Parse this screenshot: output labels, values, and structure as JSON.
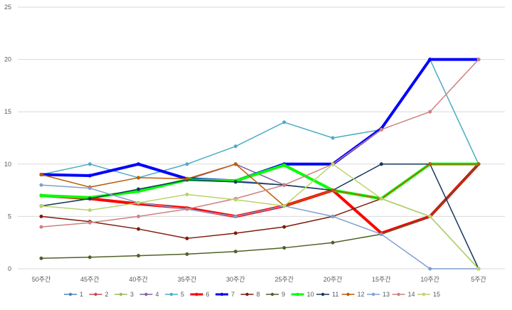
{
  "chart_data": {
    "type": "line",
    "title": "",
    "xlabel": "",
    "ylabel": "",
    "ylim": [
      0,
      25
    ],
    "yticks": [
      0,
      5,
      10,
      15,
      20,
      25
    ],
    "grid": true,
    "legend_placement": "bottom",
    "categories": [
      "50주간",
      "45주간",
      "40주간",
      "35주간",
      "30주간",
      "25주간",
      "20주간",
      "15주간",
      "10주간",
      "5주간"
    ],
    "series": [
      {
        "name": "1",
        "color": "#4f81bd",
        "width": 1.5,
        "marker": "circle",
        "values": [
          6.0,
          6.7,
          7.6,
          8.5,
          8.4,
          8.0,
          7.5,
          6.7,
          5.0,
          0
        ]
      },
      {
        "name": "2",
        "color": "#c0504d",
        "width": 1.5,
        "marker": "circle",
        "values": [
          7.0,
          6.7,
          6.3,
          5.8,
          5.0,
          6.0,
          7.5,
          3.4,
          5.0,
          10.0
        ]
      },
      {
        "name": "3",
        "color": "#9bbb59",
        "width": 1.5,
        "marker": "circle",
        "values": [
          7.0,
          6.7,
          7.5,
          8.5,
          8.3,
          10.0,
          7.5,
          6.7,
          5.0,
          0
        ]
      },
      {
        "name": "4",
        "color": "#8064a2",
        "width": 1.5,
        "marker": "circle",
        "values": [
          9.0,
          8.9,
          10.0,
          8.5,
          10.0,
          8.0,
          7.5,
          6.7,
          10.0,
          10.0
        ]
      },
      {
        "name": "5",
        "color": "#4bacc6",
        "width": 1.5,
        "marker": "circle",
        "values": [
          9.0,
          10.0,
          8.7,
          10.0,
          11.7,
          14.0,
          12.5,
          13.3,
          20.0,
          10.0
        ]
      },
      {
        "name": "6",
        "color": "#ff0000",
        "width": 4,
        "marker": "circle",
        "values": [
          7.0,
          6.7,
          6.2,
          5.8,
          5.0,
          6.0,
          7.5,
          3.4,
          5.0,
          10.0
        ]
      },
      {
        "name": "7",
        "color": "#0000ff",
        "width": 4,
        "marker": "circle",
        "values": [
          9.0,
          8.9,
          10.0,
          8.6,
          8.4,
          10.0,
          10.0,
          13.4,
          20.0,
          20.0
        ]
      },
      {
        "name": "8",
        "color": "#7f1a0a",
        "width": 1.5,
        "marker": "circle",
        "values": [
          5.0,
          4.5,
          3.8,
          2.9,
          3.4,
          4.0,
          5.0,
          6.7,
          10.0,
          10.0
        ]
      },
      {
        "name": "9",
        "color": "#4f6228",
        "width": 1.5,
        "marker": "circle",
        "values": [
          1.0,
          1.1,
          1.25,
          1.4,
          1.65,
          2.0,
          2.5,
          3.3,
          5.0,
          10.0
        ]
      },
      {
        "name": "10",
        "color": "#00ff00",
        "width": 4,
        "marker": "circle",
        "values": [
          7.0,
          6.8,
          7.4,
          8.5,
          8.4,
          9.9,
          7.5,
          6.7,
          10.0,
          10.0
        ]
      },
      {
        "name": "11",
        "color": "#17375e",
        "width": 1.5,
        "marker": "circle",
        "values": [
          6.0,
          6.7,
          7.6,
          8.5,
          8.3,
          8.0,
          7.5,
          10.0,
          10.0,
          0
        ]
      },
      {
        "name": "12",
        "color": "#c05a00",
        "width": 1.5,
        "marker": "circle",
        "values": [
          9.0,
          7.8,
          8.7,
          8.6,
          10.0,
          6.0,
          7.5,
          6.7,
          10.0,
          10.0
        ]
      },
      {
        "name": "13",
        "color": "#7f9fd0",
        "width": 1.5,
        "marker": "circle",
        "values": [
          8.0,
          7.7,
          6.3,
          5.7,
          5.0,
          6.0,
          5.0,
          3.3,
          0,
          0
        ]
      },
      {
        "name": "14",
        "color": "#d08080",
        "width": 1.5,
        "marker": "circle",
        "values": [
          4.0,
          4.4,
          5.0,
          5.7,
          6.7,
          8.0,
          10.0,
          13.3,
          15.0,
          20.0
        ]
      },
      {
        "name": "15",
        "color": "#b8d468",
        "width": 1.5,
        "marker": "circle",
        "values": [
          6.0,
          5.6,
          6.3,
          7.1,
          6.6,
          6.0,
          10.0,
          6.7,
          5.0,
          0
        ]
      }
    ]
  }
}
